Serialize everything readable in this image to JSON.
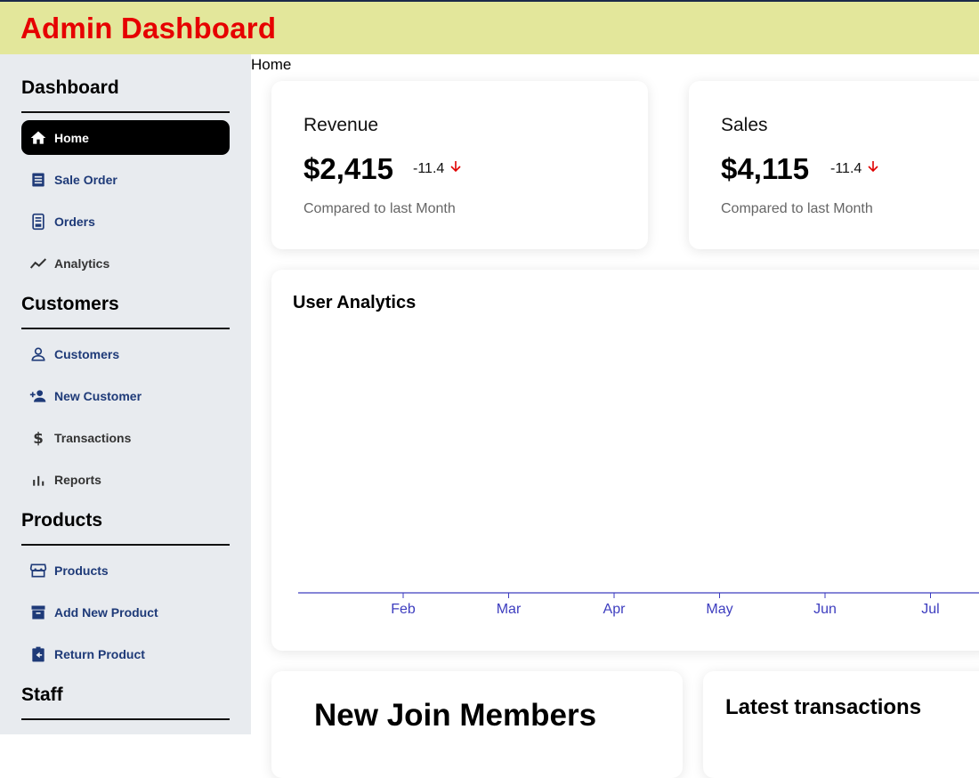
{
  "app": {
    "title": "Admin Dashboard"
  },
  "breadcrumb": "Home",
  "sidebar": {
    "sections": [
      {
        "title": "Dashboard",
        "items": [
          {
            "label": "Home",
            "icon": "home-icon"
          },
          {
            "label": "Sale Order",
            "icon": "receipt-icon"
          },
          {
            "label": "Orders",
            "icon": "orders-icon"
          },
          {
            "label": "Analytics",
            "icon": "trend-icon"
          }
        ]
      },
      {
        "title": "Customers",
        "items": [
          {
            "label": "Customers",
            "icon": "person-icon"
          },
          {
            "label": "New Customer",
            "icon": "person-add-icon"
          },
          {
            "label": "Transactions",
            "icon": "dollar-icon"
          },
          {
            "label": "Reports",
            "icon": "bar-chart-icon"
          }
        ]
      },
      {
        "title": "Products",
        "items": [
          {
            "label": "Products",
            "icon": "store-icon"
          },
          {
            "label": "Add New Product",
            "icon": "archive-icon"
          },
          {
            "label": "Return Product",
            "icon": "return-icon"
          }
        ]
      },
      {
        "title": "Staff",
        "items": []
      }
    ]
  },
  "stats": [
    {
      "label": "Revenue",
      "value": "$2,415",
      "delta": "-11.4",
      "compare": "Compared to last Month"
    },
    {
      "label": "Sales",
      "value": "$4,115",
      "delta": "-11.4",
      "compare": "Compared to last Month"
    }
  ],
  "analytics": {
    "title": "User Analytics",
    "months": [
      "Feb",
      "Mar",
      "Apr",
      "May",
      "Jun",
      "Jul"
    ]
  },
  "widgets": {
    "new_members_title": "New Join Members",
    "latest_transactions_title": "Latest transactions"
  },
  "colors": {
    "topbar": "#e3e79b",
    "title": "#e60000",
    "sidebar": "#e8ebef",
    "nav_blue": "#1e3a78",
    "axis": "#3d3dbf",
    "delta_arrow": "#e00000"
  }
}
